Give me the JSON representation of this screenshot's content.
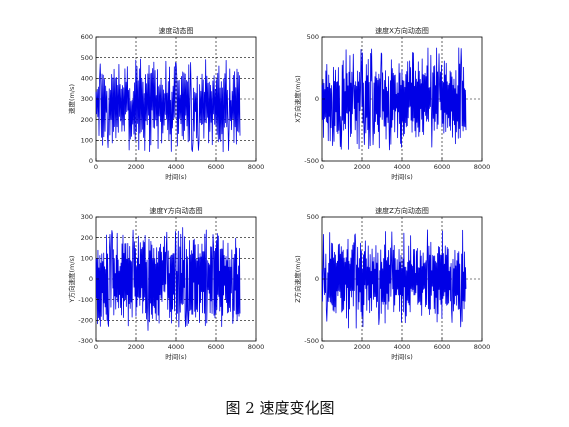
{
  "caption": "图 2 速度变化图",
  "colors": {
    "line": "#0000e6",
    "grid": "#000000",
    "axis": "#000000"
  },
  "chart_data": [
    {
      "type": "line",
      "title": "速度动态图",
      "xlabel": "时间(s)",
      "ylabel": "速度(m/s)",
      "xlim": [
        0,
        8000
      ],
      "ylim": [
        0,
        600
      ],
      "xticks": [
        "0",
        "2000",
        "4000",
        "6000",
        "8000"
      ],
      "yticks": [
        "0",
        "100",
        "200",
        "300",
        "400",
        "500",
        "600"
      ],
      "grid": true,
      "data_xmax": 7200,
      "signal": {
        "points": 240,
        "center": 270,
        "amplitude": 190,
        "min": 20,
        "max": 500,
        "seed": 11
      }
    },
    {
      "type": "line",
      "title": "速度X方向动态图",
      "xlabel": "时间(s)",
      "ylabel": "X方向速度(m/s)",
      "xlim": [
        0,
        8000
      ],
      "ylim": [
        -500,
        500
      ],
      "xticks": [
        "0",
        "2000",
        "4000",
        "6000",
        "8000"
      ],
      "yticks": [
        "-500",
        "0",
        "500"
      ],
      "grid": true,
      "data_xmax": 7200,
      "signal": {
        "points": 300,
        "center": 0,
        "amplitude": 300,
        "min": -460,
        "max": 420,
        "seed": 23
      }
    },
    {
      "type": "line",
      "title": "速度Y方向动态图",
      "xlabel": "时间(s)",
      "ylabel": "Y方向速度(m/s)",
      "xlim": [
        0,
        8000
      ],
      "ylim": [
        -300,
        300
      ],
      "xticks": [
        "0",
        "2000",
        "4000",
        "6000",
        "8000"
      ],
      "yticks": [
        "-300",
        "-200",
        "-100",
        "0",
        "100",
        "200",
        "300"
      ],
      "grid": true,
      "data_xmax": 7200,
      "signal": {
        "points": 300,
        "center": 0,
        "amplitude": 200,
        "min": -280,
        "max": 250,
        "seed": 37
      }
    },
    {
      "type": "line",
      "title": "速度Z方向动态图",
      "xlabel": "时间(s)",
      "ylabel": "Z方向速度(m/s)",
      "xlim": [
        0,
        8000
      ],
      "ylim": [
        -500,
        500
      ],
      "xticks": [
        "0",
        "2000",
        "4000",
        "6000",
        "8000"
      ],
      "yticks": [
        "-500",
        "0",
        "500"
      ],
      "grid": true,
      "data_xmax": 7200,
      "signal": {
        "points": 300,
        "center": 0,
        "amplitude": 280,
        "min": -420,
        "max": 400,
        "seed": 53
      }
    }
  ]
}
